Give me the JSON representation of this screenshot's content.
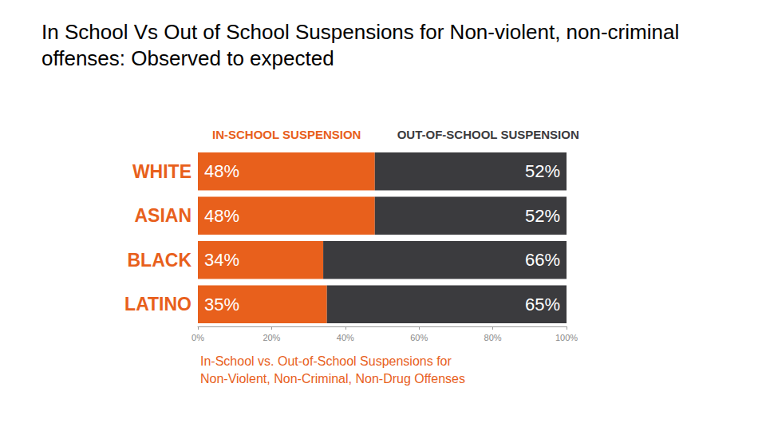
{
  "chart_data": {
    "type": "bar",
    "title": "In School Vs Out of School Suspensions for Non-violent, non-criminal offenses: Observed to expected",
    "subtitle": "In-School vs. Out-of-School Suspensions for Non-Violent, Non-Criminal, Non-Drug Offenses",
    "orientation": "horizontal",
    "stacked": true,
    "data_labels": true,
    "legend": "top",
    "grid": false,
    "categories": [
      "WHITE",
      "ASIAN",
      "BLACK",
      "LATINO"
    ],
    "series": [
      {
        "name": "IN-SCHOOL SUSPENSION",
        "color": "#e8601c",
        "values": [
          48,
          48,
          34,
          35
        ],
        "value_labels": [
          "48%",
          "48%",
          "34%",
          "35%"
        ]
      },
      {
        "name": "OUT-OF-SCHOOL SUSPENSION",
        "color": "#3b3b3e",
        "values": [
          52,
          52,
          66,
          65
        ],
        "value_labels": [
          "52%",
          "52%",
          "66%",
          "65%"
        ]
      }
    ],
    "xlim": [
      0,
      100
    ],
    "xticks": [
      {
        "value": 0,
        "label": "0%"
      },
      {
        "value": 20,
        "label": "20%"
      },
      {
        "value": 40,
        "label": "40%"
      },
      {
        "value": 60,
        "label": "60%"
      },
      {
        "value": 80,
        "label": "80%"
      },
      {
        "value": 100,
        "label": "100%"
      }
    ]
  }
}
